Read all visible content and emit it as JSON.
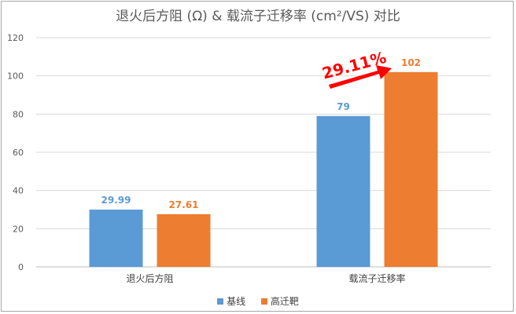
{
  "chart_data": {
    "type": "bar",
    "title": "退火后方阻 (Ω) & 载流子迁移率 (cm²/VS) 对比",
    "categories": [
      "退火后方阻",
      "载流子迁移率"
    ],
    "series": [
      {
        "name": "基线",
        "values": [
          29.99,
          79
        ],
        "labels": [
          "29.99",
          "79"
        ],
        "color": "#5b9bd5"
      },
      {
        "name": "高迁靶",
        "values": [
          27.61,
          102
        ],
        "labels": [
          "27.61",
          "102"
        ],
        "color": "#ed7d31"
      }
    ],
    "ylim": [
      0,
      120
    ],
    "yticks": [
      "0",
      "20",
      "40",
      "60",
      "80",
      "100",
      "120"
    ],
    "grid": true,
    "legend": "bottom",
    "annotation": {
      "text": "29.11%",
      "color": "#ff0000"
    }
  }
}
